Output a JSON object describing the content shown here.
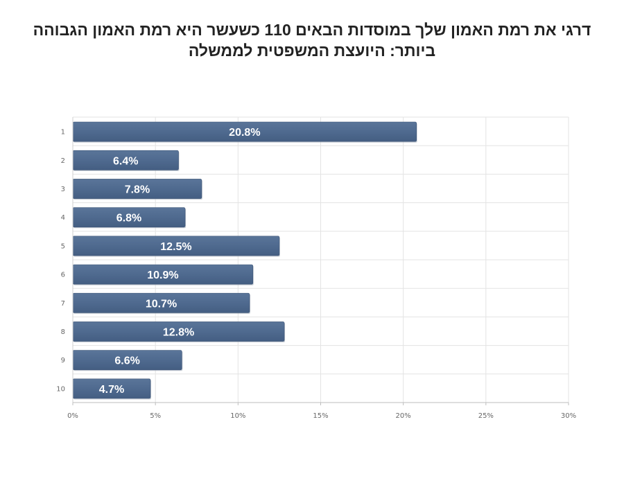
{
  "chart_data": {
    "type": "bar",
    "orientation": "horizontal",
    "title": "דרגי את רמת האמון שלך במוסדות הבאים 110 כשעשר היא רמת האמון הגבוהה ביותר: היועצת המשפטית לממשלה",
    "categories": [
      "1",
      "2",
      "3",
      "4",
      "5",
      "6",
      "7",
      "8",
      "9",
      "10"
    ],
    "values": [
      20.8,
      6.4,
      7.8,
      6.8,
      12.5,
      10.9,
      10.7,
      12.8,
      6.6,
      4.7
    ],
    "value_labels": [
      "20.8%",
      "6.4%",
      "7.8%",
      "6.8%",
      "12.5%",
      "10.9%",
      "10.7%",
      "12.8%",
      "6.6%",
      "4.7%"
    ],
    "x_ticks": [
      0,
      5,
      10,
      15,
      20,
      25,
      30
    ],
    "x_tick_labels": [
      "0%",
      "5%",
      "10%",
      "15%",
      "20%",
      "25%",
      "30%"
    ],
    "xlim": [
      0,
      30
    ],
    "xlabel": "",
    "ylabel": "",
    "grid": true,
    "bar_color": "#4f6a8f"
  }
}
